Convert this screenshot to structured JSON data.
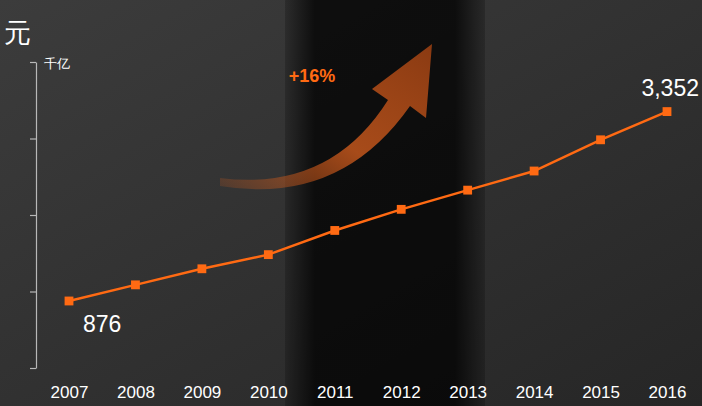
{
  "chart_data": {
    "type": "line",
    "title": "元",
    "y_label": "千亿",
    "categories": [
      "2007",
      "2008",
      "2009",
      "2010",
      "2011",
      "2012",
      "2013",
      "2014",
      "2015",
      "2016"
    ],
    "values": [
      876,
      1087,
      1297,
      1482,
      1798,
      2074,
      2325,
      2575,
      2983,
      3352
    ],
    "value_labels": [
      "876",
      null,
      null,
      null,
      null,
      null,
      null,
      null,
      null,
      "3,352"
    ],
    "data_labels": true,
    "annotations": [
      "+16%"
    ],
    "color": "#ff6a13",
    "marker": "square",
    "ylim": [
      0,
      4000
    ],
    "yticks": [
      0,
      1000,
      2000,
      3000,
      4000
    ],
    "tick_labels": "x",
    "grid": false
  }
}
